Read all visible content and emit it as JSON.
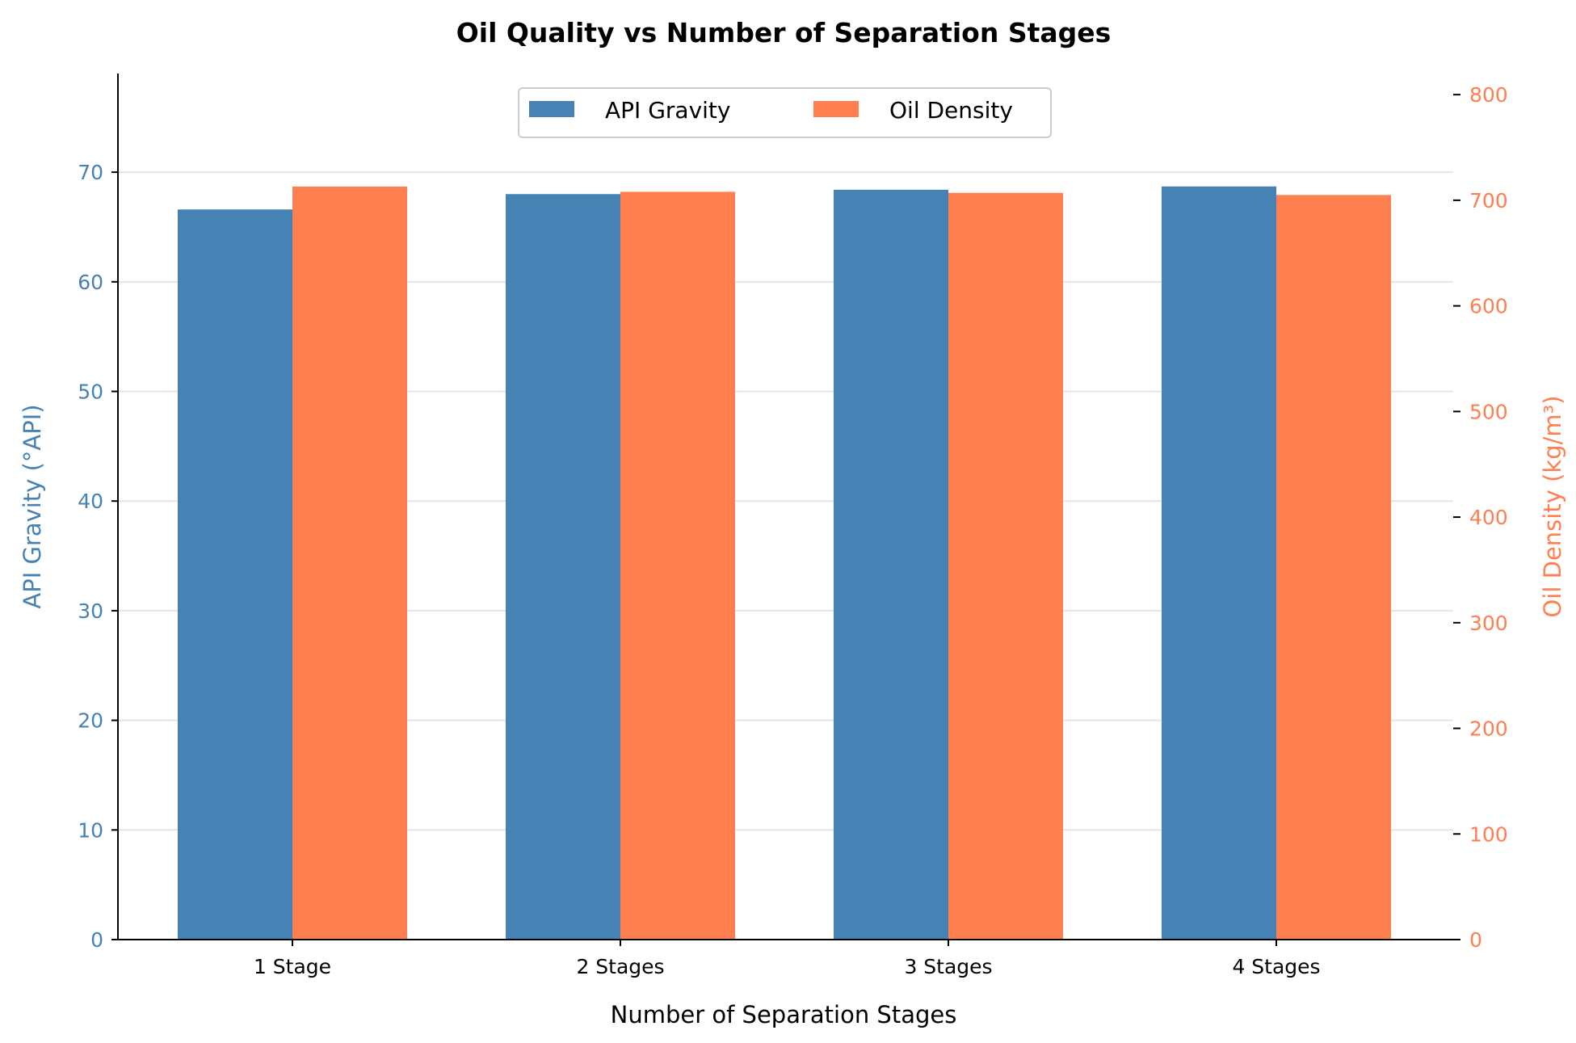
{
  "chart_data": {
    "type": "bar",
    "title": "Oil Quality vs Number of Separation Stages",
    "xlabel": "Number of Separation Stages",
    "categories": [
      "1 Stage",
      "2 Stages",
      "3 Stages",
      "4 Stages"
    ],
    "y_left": {
      "label": "API Gravity (°API)",
      "ylim": [
        0,
        79
      ],
      "ticks": [
        0,
        10,
        20,
        30,
        40,
        50,
        60,
        70
      ],
      "color": "#4682b4"
    },
    "y_right": {
      "label": "Oil Density (kg/m³)",
      "ylim": [
        0,
        820
      ],
      "ticks": [
        0,
        100,
        200,
        300,
        400,
        500,
        600,
        700,
        800
      ],
      "color": "#ff7f50"
    },
    "series": [
      {
        "name": "API Gravity",
        "axis": "left",
        "color": "#4682b4",
        "values": [
          66.6,
          68.0,
          68.4,
          68.7
        ]
      },
      {
        "name": "Oil Density",
        "axis": "right",
        "color": "#ff7f50",
        "values": [
          713,
          708,
          707,
          705
        ]
      }
    ],
    "legend": {
      "placement": "top-center",
      "entries": [
        "API Gravity",
        "Oil Density"
      ]
    },
    "grid": "horizontal"
  }
}
